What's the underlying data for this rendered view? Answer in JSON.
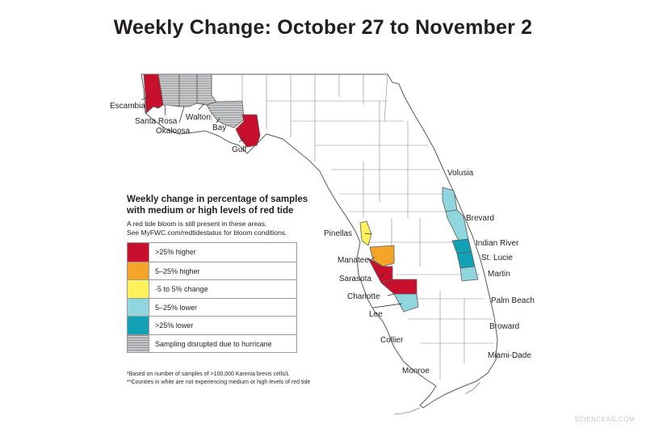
{
  "title": "Weekly Change: October 27 to November 2",
  "colors": {
    "higher_25": "#c8102e",
    "higher_5_25": "#f4a428",
    "change_5": "#fdf25c",
    "lower_5_25": "#8fd6df",
    "lower_25": "#11a0b4",
    "disrupted": "#c7c8ca",
    "no_tide": "#ffffff",
    "outline": "#5a5a5a"
  },
  "legend": {
    "heading": "Weekly change in percentage of samples with medium or high levels of red tide",
    "note_line1": "A red tide bloom is still present in these areas.",
    "note_line2": "See MyFWC.com/redtidestatus for bloom conditions.",
    "items": [
      {
        "label": ">25% higher",
        "category": "higher_25"
      },
      {
        "label": "5–25% higher",
        "category": "higher_5_25"
      },
      {
        "label": "-5 to 5% change",
        "category": "change_5"
      },
      {
        "label": "5–25% lower",
        "category": "lower_5_25"
      },
      {
        "label": ">25% lower",
        "category": "lower_25"
      },
      {
        "label": "Sampling disrupted due to hurricane",
        "category": "disrupted"
      }
    ]
  },
  "footnotes": {
    "line1": "*Based on number of samples of >100,000 Karenia brevis cells/L",
    "line2": "**Counties in white are not experiencing medium or high levels of red tide"
  },
  "counties": {
    "escambia": {
      "label": "Escambia",
      "status": "higher_25"
    },
    "santa_rosa": {
      "label": "Santa Rosa",
      "status": "disrupted"
    },
    "okaloosa": {
      "label": "Okaloosa",
      "status": "disrupted"
    },
    "walton": {
      "label": "Walton",
      "status": "disrupted"
    },
    "bay": {
      "label": "Bay",
      "status": "disrupted"
    },
    "gulf": {
      "label": "Gulf",
      "status": "higher_25"
    },
    "volusia": {
      "label": "Volusia",
      "status": "lower_5_25"
    },
    "brevard": {
      "label": "Brevard",
      "status": "lower_5_25"
    },
    "indian_river": {
      "label": "Indian River",
      "status": "lower_25"
    },
    "st_lucie": {
      "label": "St. Lucie",
      "status": "lower_25"
    },
    "martin": {
      "label": "Martin",
      "status": "lower_5_25"
    },
    "palm_beach": {
      "label": "Palm Beach",
      "status": "no_tide"
    },
    "broward": {
      "label": "Broward",
      "status": "no_tide"
    },
    "miami_dade": {
      "label": "Miami-Dade",
      "status": "no_tide"
    },
    "monroe": {
      "label": "Monroe",
      "status": "no_tide"
    },
    "collier": {
      "label": "Collier",
      "status": "no_tide"
    },
    "lee": {
      "label": "Lee",
      "status": "lower_5_25"
    },
    "charlotte": {
      "label": "Charlotte",
      "status": "higher_25"
    },
    "sarasota": {
      "label": "Sarasota",
      "status": "higher_25"
    },
    "manatee": {
      "label": "Manatee",
      "status": "higher_5_25"
    },
    "pinellas": {
      "label": "Pinellas",
      "status": "change_5"
    }
  },
  "watermark": "SCIENCEAG.COM"
}
